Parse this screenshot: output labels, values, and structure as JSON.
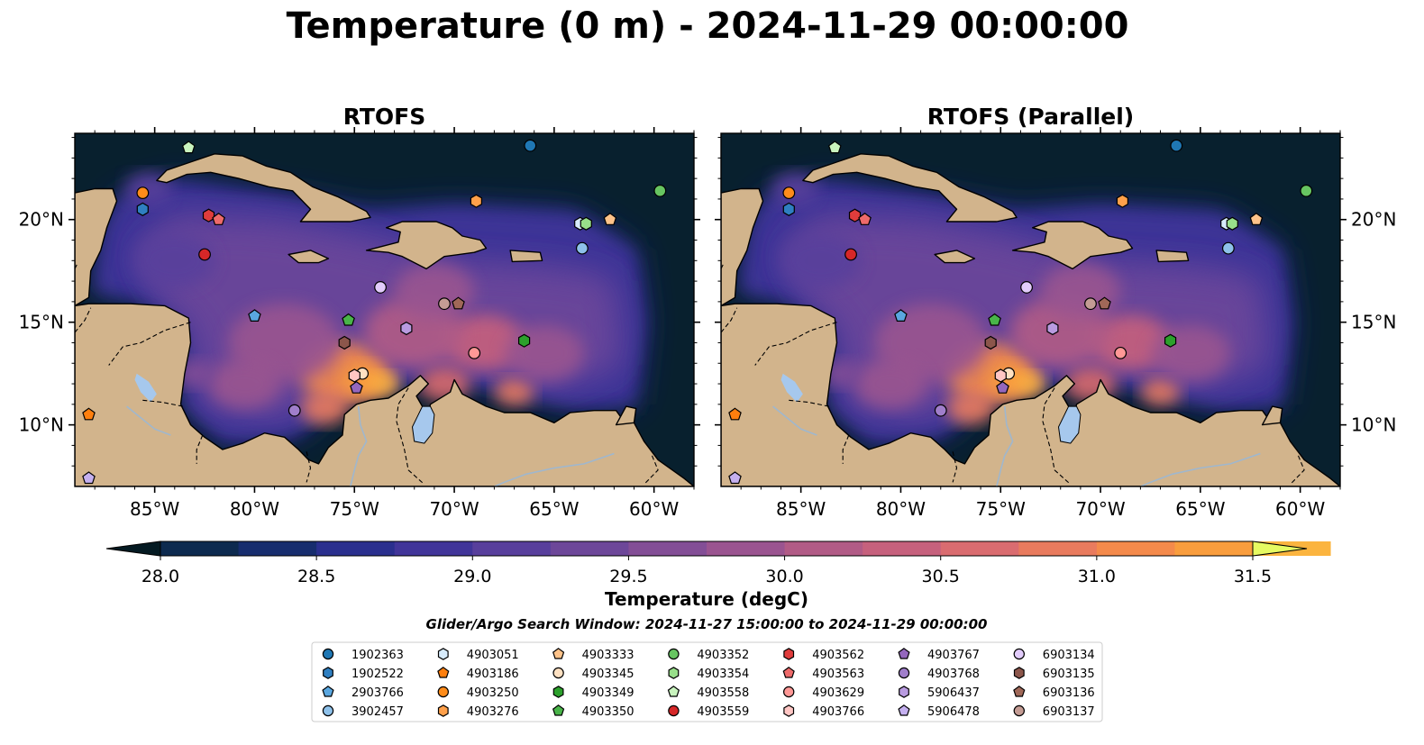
{
  "figure": {
    "title": "Temperature (0 m) - 2024-11-29 00:00:00",
    "panels": [
      {
        "title": "RTOFS"
      },
      {
        "title": "RTOFS (Parallel)"
      }
    ],
    "lon_ticks": [
      "85°W",
      "80°W",
      "75°W",
      "70°W",
      "65°W",
      "60°W"
    ],
    "lat_ticks": [
      "20°N",
      "15°N",
      "10°N"
    ],
    "colorbar": {
      "label": "Temperature (degC)",
      "min": 27.75,
      "max": 31.5,
      "extend": "both",
      "tick_labels": [
        "28.0",
        "28.5",
        "29.0",
        "29.5",
        "30.0",
        "30.5",
        "31.0",
        "31.5"
      ],
      "colors": [
        "#06202c",
        "#0d2a4f",
        "#172d6e",
        "#2a2f8e",
        "#413599",
        "#583f9c",
        "#6d4799",
        "#834e96",
        "#9a5490",
        "#b15b86",
        "#c6617d",
        "#da6c70",
        "#e97b5e",
        "#f48a4b",
        "#f99d3d",
        "#fbb43f",
        "#f5cf4c",
        "#e8f760"
      ],
      "extend_colors": {
        "low": "#041a22",
        "high": "#e6fa62"
      }
    },
    "map_colors": {
      "land": "#d2b48c",
      "lake": "#a6c8ed",
      "river": "#9fb7ce",
      "deep": "#08202e"
    },
    "search_window": "Glider/Argo Search Window: 2024-11-27 15:00:00 to 2024-11-29 00:00:00",
    "legend": [
      {
        "id": "1902363",
        "color": "#1f77b4",
        "marker": "circle"
      },
      {
        "id": "1902522",
        "color": "#2f7fc1",
        "marker": "hexagon"
      },
      {
        "id": "2903766",
        "color": "#5aa7e0",
        "marker": "pentagon"
      },
      {
        "id": "3902457",
        "color": "#8ec1ea",
        "marker": "circle"
      },
      {
        "id": "4903051",
        "color": "#d7ebfb",
        "marker": "hexagon"
      },
      {
        "id": "4903186",
        "color": "#ff7f0e",
        "marker": "pentagon"
      },
      {
        "id": "4903250",
        "color": "#ff8c1a",
        "marker": "circle"
      },
      {
        "id": "4903276",
        "color": "#ffa04a",
        "marker": "hexagon"
      },
      {
        "id": "4903333",
        "color": "#ffc38a",
        "marker": "pentagon"
      },
      {
        "id": "4903345",
        "color": "#ffe1c2",
        "marker": "circle"
      },
      {
        "id": "4903349",
        "color": "#2ca02c",
        "marker": "hexagon"
      },
      {
        "id": "4903350",
        "color": "#49b449",
        "marker": "pentagon"
      },
      {
        "id": "4903352",
        "color": "#67c561",
        "marker": "circle"
      },
      {
        "id": "4903354",
        "color": "#98df8a",
        "marker": "hexagon"
      },
      {
        "id": "4903558",
        "color": "#c9f4be",
        "marker": "pentagon"
      },
      {
        "id": "4903559",
        "color": "#d62728",
        "marker": "circle"
      },
      {
        "id": "4903562",
        "color": "#e03c3c",
        "marker": "hexagon"
      },
      {
        "id": "4903563",
        "color": "#ee6a6a",
        "marker": "pentagon"
      },
      {
        "id": "4903629",
        "color": "#ff9896",
        "marker": "circle"
      },
      {
        "id": "4903766",
        "color": "#ffc6c4",
        "marker": "hexagon"
      },
      {
        "id": "4903767",
        "color": "#9467bd",
        "marker": "pentagon"
      },
      {
        "id": "4903768",
        "color": "#a07ecb",
        "marker": "circle"
      },
      {
        "id": "5906437",
        "color": "#b99be0",
        "marker": "hexagon"
      },
      {
        "id": "5906478",
        "color": "#c5b0f0",
        "marker": "pentagon"
      },
      {
        "id": "6903134",
        "color": "#e2ccfb",
        "marker": "circle"
      },
      {
        "id": "6903135",
        "color": "#8c564b",
        "marker": "hexagon"
      },
      {
        "id": "6903136",
        "color": "#a06858",
        "marker": "pentagon"
      },
      {
        "id": "6903137",
        "color": "#c49c94",
        "marker": "circle"
      }
    ],
    "floats": [
      {
        "id": "1902363",
        "lon": -66.2,
        "lat": 23.6
      },
      {
        "id": "1902522",
        "lon": -85.6,
        "lat": 20.5
      },
      {
        "id": "2903766",
        "lon": -80.0,
        "lat": 15.3
      },
      {
        "id": "3902457",
        "lon": -63.6,
        "lat": 18.6
      },
      {
        "id": "4903051",
        "lon": -63.7,
        "lat": 19.8
      },
      {
        "id": "4903186",
        "lon": -88.3,
        "lat": 10.5
      },
      {
        "id": "4903250",
        "lon": -85.6,
        "lat": 21.3
      },
      {
        "id": "4903276",
        "lon": -68.9,
        "lat": 20.9
      },
      {
        "id": "4903333",
        "lon": -62.2,
        "lat": 20.0
      },
      {
        "id": "4903345",
        "lon": -74.6,
        "lat": 12.5
      },
      {
        "id": "4903349",
        "lon": -66.5,
        "lat": 14.1
      },
      {
        "id": "4903350",
        "lon": -75.3,
        "lat": 15.1
      },
      {
        "id": "4903352",
        "lon": -59.7,
        "lat": 21.4
      },
      {
        "id": "4903354",
        "lon": -63.4,
        "lat": 19.8
      },
      {
        "id": "4903558",
        "lon": -83.3,
        "lat": 23.5
      },
      {
        "id": "4903559",
        "lon": -82.5,
        "lat": 18.3
      },
      {
        "id": "4903562",
        "lon": -82.3,
        "lat": 20.2
      },
      {
        "id": "4903563",
        "lon": -81.8,
        "lat": 20.0
      },
      {
        "id": "4903629",
        "lon": -69.0,
        "lat": 13.5
      },
      {
        "id": "4903766",
        "lon": -75.0,
        "lat": 12.4
      },
      {
        "id": "4903767",
        "lon": -74.9,
        "lat": 11.8
      },
      {
        "id": "4903768",
        "lon": -78.0,
        "lat": 10.7
      },
      {
        "id": "5906437",
        "lon": -72.4,
        "lat": 14.7
      },
      {
        "id": "5906478",
        "lon": -88.3,
        "lat": 7.4
      },
      {
        "id": "6903134",
        "lon": -73.7,
        "lat": 16.7
      },
      {
        "id": "6903135",
        "lon": -75.5,
        "lat": 14.0
      },
      {
        "id": "6903136",
        "lon": -69.8,
        "lat": 15.9
      },
      {
        "id": "6903137",
        "lon": -70.5,
        "lat": 15.9
      }
    ]
  }
}
